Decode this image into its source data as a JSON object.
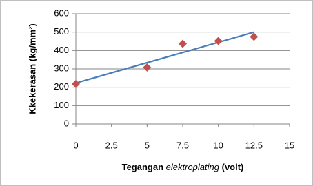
{
  "chart_data": {
    "type": "scatter",
    "ylabel": "Kkekerasan (kg/mm²)",
    "xlabel_parts": [
      "Tegangan",
      "elektroplating",
      "(volt)"
    ],
    "x": [
      0,
      5,
      7.5,
      10,
      12.5
    ],
    "values": [
      218,
      308,
      437,
      452,
      475
    ],
    "color": "#c0504d",
    "trendline": {
      "x": [
        0,
        12.5
      ],
      "values": [
        223,
        500
      ],
      "color": "#4a7ebb"
    },
    "xlim": [
      0,
      15
    ],
    "xticks": [
      0,
      2.5,
      5,
      7.5,
      10,
      12.5,
      15
    ],
    "ylim": [
      0,
      600
    ],
    "yticks": [
      0,
      100,
      200,
      300,
      400,
      500,
      600
    ],
    "grid": true
  }
}
